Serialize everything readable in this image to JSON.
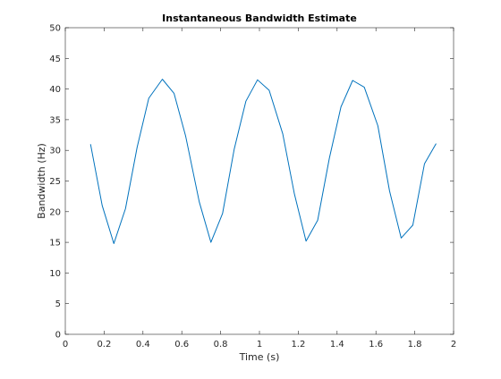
{
  "chart_data": {
    "type": "line",
    "title": "Instantaneous Bandwidth Estimate",
    "xlabel": "Time (s)",
    "ylabel": "Bandwidth (Hz)",
    "xlim": [
      0,
      2
    ],
    "ylim": [
      0,
      50
    ],
    "xticks": [
      0,
      0.2,
      0.4,
      0.6,
      0.8,
      1,
      1.2,
      1.4,
      1.6,
      1.8,
      2
    ],
    "yticks": [
      0,
      5,
      10,
      15,
      20,
      25,
      30,
      35,
      40,
      45,
      50
    ],
    "xtick_labels": [
      "0",
      "0.2",
      "0.4",
      "0.6",
      "0.8",
      "1",
      "1.2",
      "1.4",
      "1.6",
      "1.8",
      "2"
    ],
    "ytick_labels": [
      "0",
      "5",
      "10",
      "15",
      "20",
      "25",
      "30",
      "35",
      "40",
      "45",
      "50"
    ],
    "grid": false,
    "box": true,
    "series": [
      {
        "color": "#0072bd",
        "x": [
          0.13,
          0.19,
          0.25,
          0.31,
          0.37,
          0.43,
          0.5,
          0.56,
          0.62,
          0.69,
          0.75,
          0.81,
          0.87,
          0.93,
          0.99,
          1.05,
          1.12,
          1.18,
          1.24,
          1.3,
          1.36,
          1.42,
          1.48,
          1.54,
          1.61,
          1.67,
          1.73,
          1.79,
          1.85,
          1.91
        ],
        "y": [
          31,
          21,
          14.8,
          20.5,
          30.5,
          38.5,
          41.6,
          39.3,
          32.3,
          21.6,
          15,
          19.7,
          30.2,
          38,
          41.5,
          39.8,
          32.7,
          22.9,
          15.2,
          18.6,
          28.7,
          37.1,
          41.4,
          40.3,
          34,
          23.4,
          15.7,
          17.8,
          27.8,
          31.1
        ]
      }
    ]
  }
}
